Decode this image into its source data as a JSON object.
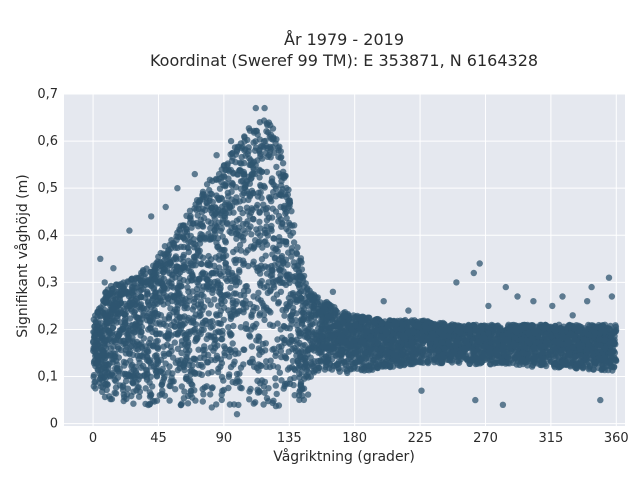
{
  "chart_data": {
    "type": "scatter",
    "title_line1": "År 1979 - 2019",
    "title_line2": "Koordinat (Sweref 99 TM): E 353871, N 6164328",
    "xlabel": "Vågriktning (grader)",
    "ylabel": "Signifikant våghöjd (m)",
    "xlim": [
      -20,
      366
    ],
    "ylim": [
      -0.005,
      0.7
    ],
    "xticks": [
      0,
      45,
      90,
      135,
      180,
      225,
      270,
      315,
      360
    ],
    "xtick_labels": [
      "0",
      "45",
      "90",
      "135",
      "180",
      "225",
      "270",
      "315",
      "360"
    ],
    "yticks": [
      0,
      0.1,
      0.2,
      0.3,
      0.4,
      0.5,
      0.6,
      0.7
    ],
    "ytick_labels": [
      "0",
      "0,1",
      "0,2",
      "0,3",
      "0,4",
      "0,5",
      "0,6",
      "0,7"
    ],
    "grid": true,
    "marker_color": "#2f5570",
    "background_color": "#e5e8ef",
    "upper_envelope": [
      {
        "x": 0,
        "y": 0.22
      },
      {
        "x": 5,
        "y": 0.26
      },
      {
        "x": 10,
        "y": 0.29
      },
      {
        "x": 20,
        "y": 0.3
      },
      {
        "x": 30,
        "y": 0.32
      },
      {
        "x": 40,
        "y": 0.34
      },
      {
        "x": 50,
        "y": 0.38
      },
      {
        "x": 60,
        "y": 0.42
      },
      {
        "x": 70,
        "y": 0.47
      },
      {
        "x": 80,
        "y": 0.52
      },
      {
        "x": 90,
        "y": 0.55
      },
      {
        "x": 100,
        "y": 0.6
      },
      {
        "x": 108,
        "y": 0.63
      },
      {
        "x": 115,
        "y": 0.66
      },
      {
        "x": 120,
        "y": 0.65
      },
      {
        "x": 125,
        "y": 0.62
      },
      {
        "x": 130,
        "y": 0.58
      },
      {
        "x": 135,
        "y": 0.5
      },
      {
        "x": 140,
        "y": 0.4
      },
      {
        "x": 145,
        "y": 0.32
      },
      {
        "x": 150,
        "y": 0.28
      },
      {
        "x": 160,
        "y": 0.26
      },
      {
        "x": 170,
        "y": 0.24
      },
      {
        "x": 180,
        "y": 0.23
      },
      {
        "x": 200,
        "y": 0.22
      },
      {
        "x": 225,
        "y": 0.22
      },
      {
        "x": 250,
        "y": 0.21
      },
      {
        "x": 270,
        "y": 0.21
      },
      {
        "x": 300,
        "y": 0.21
      },
      {
        "x": 330,
        "y": 0.21
      },
      {
        "x": 360,
        "y": 0.21
      }
    ],
    "lower_envelope": [
      {
        "x": 0,
        "y": 0.07
      },
      {
        "x": 10,
        "y": 0.05
      },
      {
        "x": 30,
        "y": 0.04
      },
      {
        "x": 60,
        "y": 0.03
      },
      {
        "x": 90,
        "y": 0.03
      },
      {
        "x": 120,
        "y": 0.03
      },
      {
        "x": 135,
        "y": 0.04
      },
      {
        "x": 150,
        "y": 0.05
      },
      {
        "x": 180,
        "y": 0.07
      },
      {
        "x": 225,
        "y": 0.1
      },
      {
        "x": 270,
        "y": 0.1
      },
      {
        "x": 315,
        "y": 0.09
      },
      {
        "x": 360,
        "y": 0.08
      }
    ],
    "outliers": [
      {
        "x": 5,
        "y": 0.35
      },
      {
        "x": 8,
        "y": 0.3
      },
      {
        "x": 14,
        "y": 0.33
      },
      {
        "x": 25,
        "y": 0.41
      },
      {
        "x": 40,
        "y": 0.44
      },
      {
        "x": 50,
        "y": 0.46
      },
      {
        "x": 58,
        "y": 0.5
      },
      {
        "x": 70,
        "y": 0.53
      },
      {
        "x": 85,
        "y": 0.57
      },
      {
        "x": 95,
        "y": 0.6
      },
      {
        "x": 112,
        "y": 0.67
      },
      {
        "x": 118,
        "y": 0.67
      },
      {
        "x": 165,
        "y": 0.28
      },
      {
        "x": 200,
        "y": 0.26
      },
      {
        "x": 217,
        "y": 0.24
      },
      {
        "x": 250,
        "y": 0.3
      },
      {
        "x": 262,
        "y": 0.32
      },
      {
        "x": 266,
        "y": 0.34
      },
      {
        "x": 272,
        "y": 0.25
      },
      {
        "x": 284,
        "y": 0.29
      },
      {
        "x": 292,
        "y": 0.27
      },
      {
        "x": 303,
        "y": 0.26
      },
      {
        "x": 316,
        "y": 0.25
      },
      {
        "x": 323,
        "y": 0.27
      },
      {
        "x": 330,
        "y": 0.23
      },
      {
        "x": 340,
        "y": 0.26
      },
      {
        "x": 343,
        "y": 0.29
      },
      {
        "x": 355,
        "y": 0.31
      },
      {
        "x": 357,
        "y": 0.27
      },
      {
        "x": 263,
        "y": 0.05
      },
      {
        "x": 282,
        "y": 0.04
      },
      {
        "x": 349,
        "y": 0.05
      },
      {
        "x": 226,
        "y": 0.07
      },
      {
        "x": 99,
        "y": 0.02
      }
    ]
  }
}
